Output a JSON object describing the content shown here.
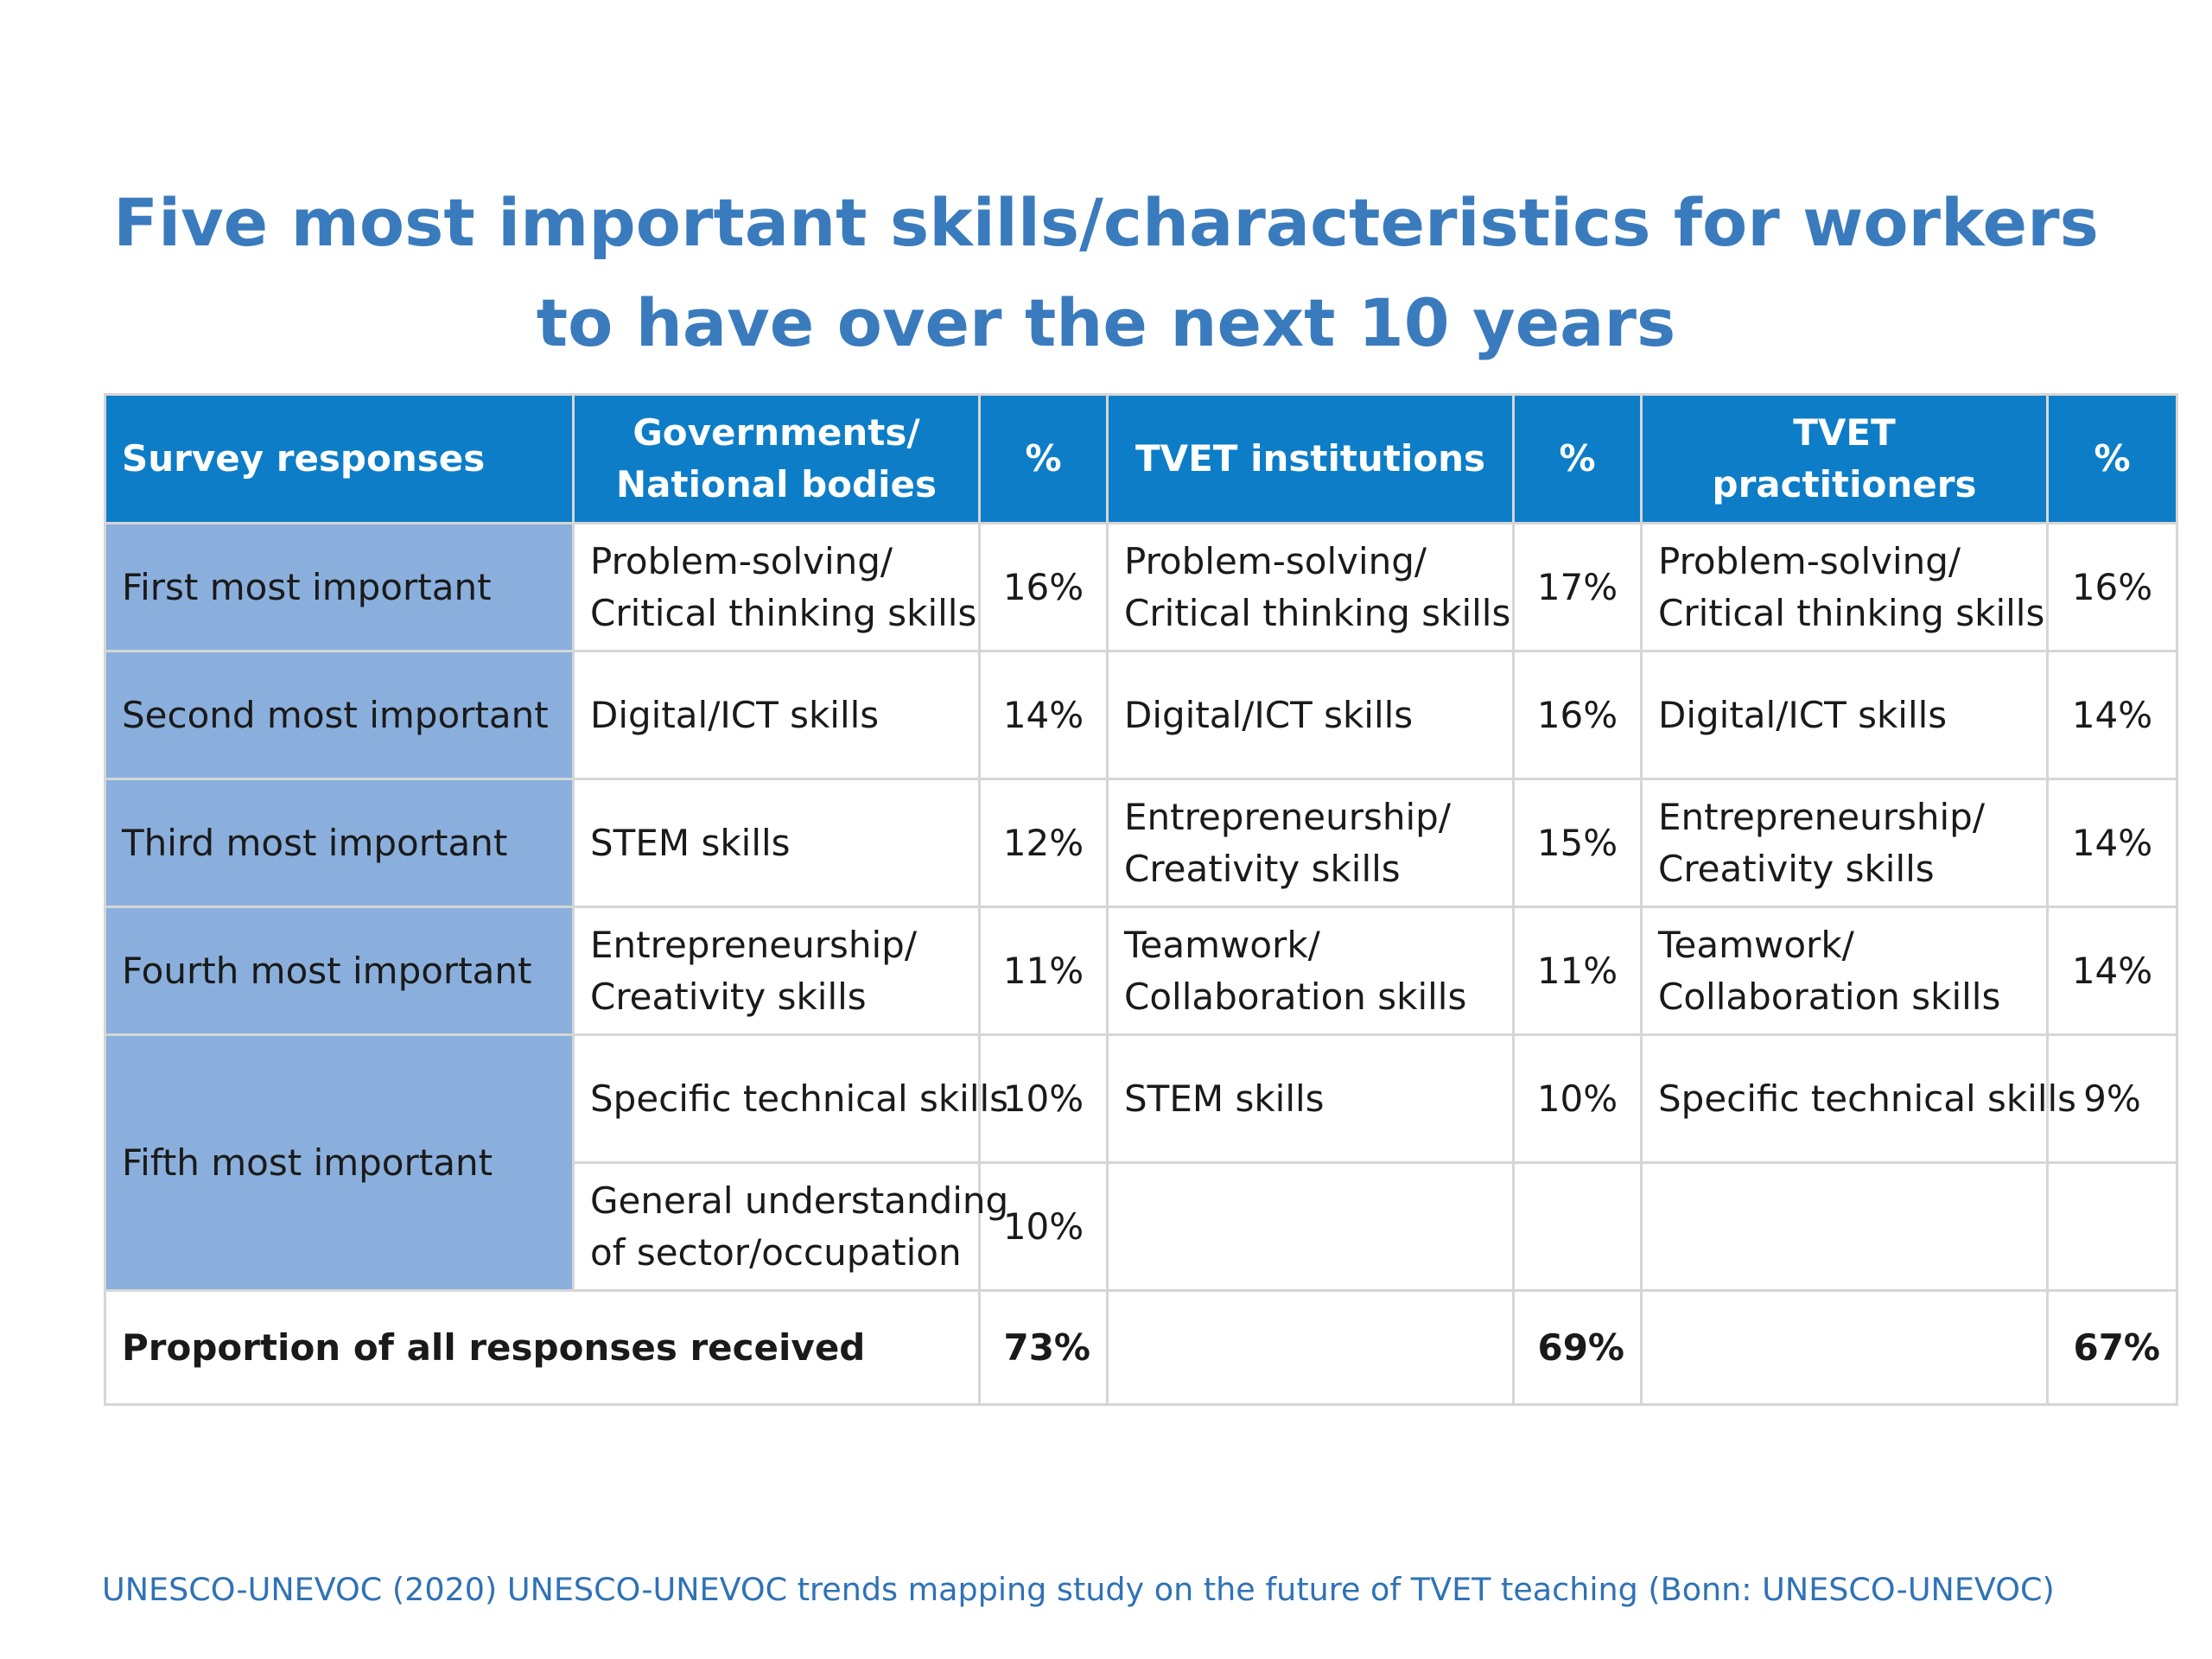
{
  "title": {
    "line1": "Five most important skills/characteristics for workers",
    "line2": "to have over the next 10 years"
  },
  "table": {
    "header": {
      "survey": "Survey responses",
      "gov_line1": "Governments/",
      "gov_line2": "National bodies",
      "pct1": "%",
      "inst": "TVET institutions",
      "pct2": "%",
      "prac": "TVET practitioners",
      "pct3": "%"
    },
    "rows": [
      {
        "label": "First most important",
        "gov": [
          "Problem-solving/",
          "Critical thinking skills"
        ],
        "gov_pct": "16%",
        "inst": [
          "Problem-solving/",
          "Critical thinking skills"
        ],
        "inst_pct": "17%",
        "prac": [
          "Problem-solving/",
          "Critical thinking skills"
        ],
        "prac_pct": "16%"
      },
      {
        "label": "Second most important",
        "gov": [
          "Digital/ICT skills"
        ],
        "gov_pct": "14%",
        "inst": [
          "Digital/ICT skills"
        ],
        "inst_pct": "16%",
        "prac": [
          "Digital/ICT skills"
        ],
        "prac_pct": "14%"
      },
      {
        "label": "Third most important",
        "gov": [
          "STEM skills"
        ],
        "gov_pct": "12%",
        "inst": [
          "Entrepreneurship/",
          "Creativity skills"
        ],
        "inst_pct": "15%",
        "prac": [
          "Entrepreneurship/",
          "Creativity skills"
        ],
        "prac_pct": "14%"
      },
      {
        "label": "Fourth most important",
        "gov": [
          "Entrepreneurship/",
          "Creativity skills"
        ],
        "gov_pct": "11%",
        "inst": [
          "Teamwork/",
          "Collaboration skills"
        ],
        "inst_pct": "11%",
        "prac": [
          "Teamwork/",
          "Collaboration skills"
        ],
        "prac_pct": "14%"
      },
      {
        "label": "Fifth most important",
        "gov": [
          "Specific technical skills"
        ],
        "gov_pct": "10%",
        "inst": [
          "STEM skills"
        ],
        "inst_pct": "10%",
        "prac": [
          "Specific technical skills"
        ],
        "prac_pct": "9%"
      },
      {
        "label": "",
        "gov": [
          "General understanding",
          "of sector/occupation"
        ],
        "gov_pct": "10%",
        "inst": [
          ""
        ],
        "inst_pct": "",
        "prac": [
          ""
        ],
        "prac_pct": ""
      }
    ],
    "total": {
      "label": "Proportion of all responses received",
      "gov_pct": "73%",
      "inst_pct": "69%",
      "prac_pct": "67%"
    }
  },
  "source": "UNESCO-UNEVOC (2020) UNESCO-UNEVOC trends mapping study on the future of TVET teaching (Bonn: UNESCO-UNEVOC)",
  "colors": {
    "title": "#3a7bbd",
    "header_bg": "#0d7dc8",
    "row_label_bg": "#8aafdc",
    "source": "#2f72b6"
  }
}
